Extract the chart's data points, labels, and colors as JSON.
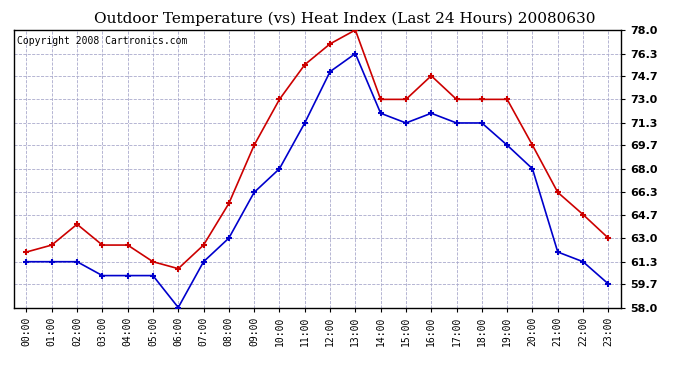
{
  "title": "Outdoor Temperature (vs) Heat Index (Last 24 Hours) 20080630",
  "copyright": "Copyright 2008 Cartronics.com",
  "hours": [
    "00:00",
    "01:00",
    "02:00",
    "03:00",
    "04:00",
    "05:00",
    "06:00",
    "07:00",
    "08:00",
    "09:00",
    "10:00",
    "11:00",
    "12:00",
    "13:00",
    "14:00",
    "15:00",
    "16:00",
    "17:00",
    "18:00",
    "19:00",
    "20:00",
    "21:00",
    "22:00",
    "23:00"
  ],
  "temp": [
    61.3,
    61.3,
    61.3,
    60.3,
    60.3,
    60.3,
    58.0,
    61.3,
    63.0,
    66.3,
    68.0,
    71.3,
    75.0,
    76.3,
    72.0,
    71.3,
    72.0,
    71.3,
    71.3,
    69.7,
    68.0,
    62.0,
    61.3,
    59.7
  ],
  "heat_index": [
    62.0,
    62.5,
    64.0,
    62.5,
    62.5,
    61.3,
    60.8,
    62.5,
    65.5,
    69.7,
    73.0,
    75.5,
    77.0,
    78.0,
    73.0,
    73.0,
    74.7,
    73.0,
    73.0,
    73.0,
    69.7,
    66.3,
    64.7,
    63.0
  ],
  "temp_color": "#0000cc",
  "heat_color": "#cc0000",
  "ylim_min": 58.0,
  "ylim_max": 78.0,
  "yticks": [
    58.0,
    59.7,
    61.3,
    63.0,
    64.7,
    66.3,
    68.0,
    69.7,
    71.3,
    73.0,
    74.7,
    76.3,
    78.0
  ],
  "bg_color": "#ffffff",
  "plot_bg": "#ffffff",
  "grid_color": "#aaaacc",
  "title_fontsize": 11,
  "copyright_fontsize": 7
}
